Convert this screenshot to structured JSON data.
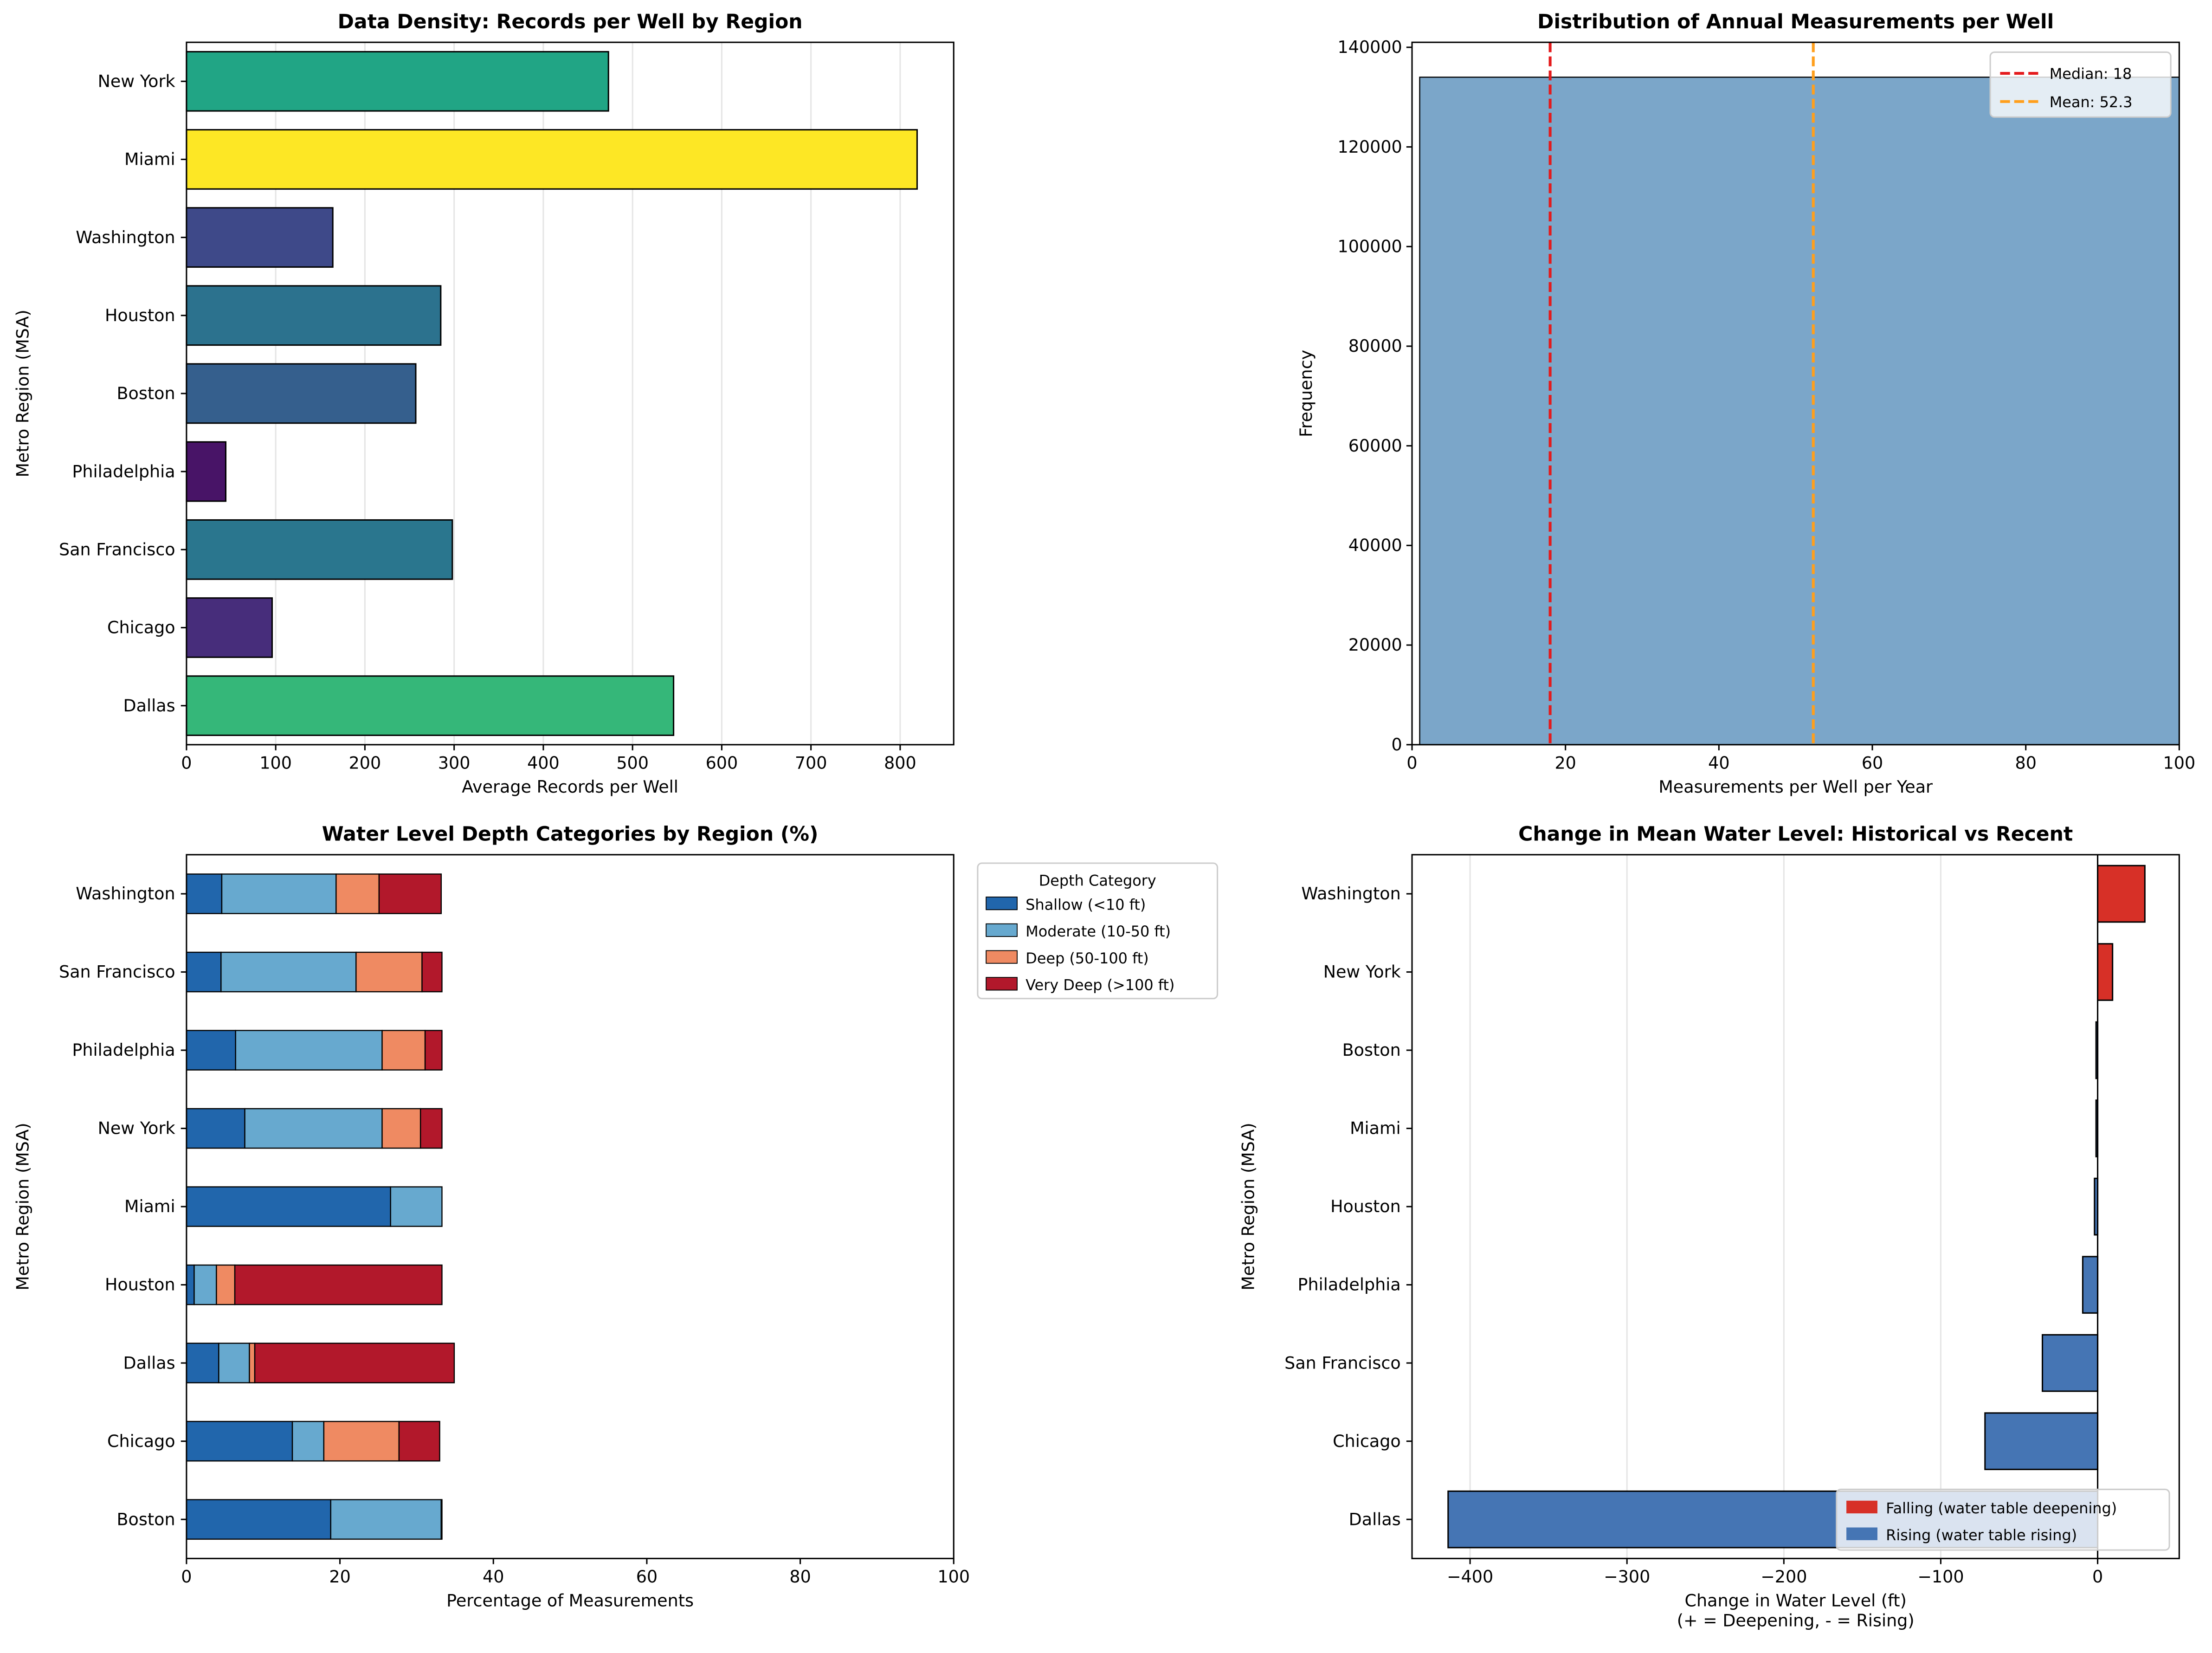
{
  "chart_data": [
    {
      "type": "bar",
      "orientation": "horizontal",
      "title": "Data Density: Records per Well by Region",
      "xlabel": "Average Records per Well",
      "ylabel": "Metro Region (MSA)",
      "xlim": [
        0,
        860
      ],
      "xticks": [
        0,
        100,
        200,
        300,
        400,
        500,
        600,
        700,
        800
      ],
      "grid": "x",
      "categories": [
        "New York",
        "Miami",
        "Washington",
        "Houston",
        "Boston",
        "Philadelphia",
        "San Francisco",
        "Chicago",
        "Dallas"
      ],
      "values": [
        473,
        819,
        164,
        285,
        257,
        44,
        298,
        96,
        546
      ],
      "colors": [
        "#21a585",
        "#fde725",
        "#3e4989",
        "#2c728e",
        "#355f8d",
        "#481467",
        "#2a768e",
        "#472d7b",
        "#35b779"
      ]
    },
    {
      "type": "bar",
      "subtype": "histogram",
      "title": "Distribution of Annual Measurements per Well",
      "xlabel": "Measurements per Well per Year",
      "ylabel": "Frequency",
      "xlim": [
        0,
        100
      ],
      "ylim": [
        0,
        141000
      ],
      "xticks": [
        0,
        20,
        40,
        60,
        80,
        100
      ],
      "yticks": [
        0,
        20000,
        40000,
        60000,
        80000,
        100000,
        120000,
        140000
      ],
      "bins": [
        {
          "x0": 1,
          "x1": 100,
          "count": 134000
        }
      ],
      "bar_color": "#7ba6c9",
      "lines": [
        {
          "name": "Median: 18",
          "x": 18,
          "color": "#e41a1c"
        },
        {
          "name": "Mean: 52.3",
          "x": 52.3,
          "color": "#ff9f1c"
        }
      ],
      "legend": "top-right"
    },
    {
      "type": "bar",
      "orientation": "horizontal",
      "stacked": true,
      "title": "Water Level Depth Categories by Region (%)",
      "xlabel": "Percentage of Measurements",
      "ylabel": "Metro Region (MSA)",
      "xlim": [
        0,
        100
      ],
      "xticks": [
        0,
        20,
        40,
        60,
        80,
        100
      ],
      "categories": [
        "Washington",
        "San Francisco",
        "Philadelphia",
        "New York",
        "Miami",
        "Houston",
        "Dallas",
        "Chicago",
        "Boston"
      ],
      "legend_title": "Depth Category",
      "legend": "outside-right",
      "series": [
        {
          "name": "Shallow (<10 ft)",
          "color": "#2166ac",
          "values": [
            4.6,
            4.5,
            6.4,
            7.6,
            26.6,
            1.0,
            4.2,
            13.8,
            18.8
          ]
        },
        {
          "name": "Moderate (10-50 ft)",
          "color": "#67a9cf",
          "values": [
            14.9,
            17.6,
            19.1,
            17.9,
            6.7,
            2.9,
            4.0,
            4.1,
            14.4
          ]
        },
        {
          "name": "Deep (50-100 ft)",
          "color": "#ef8a62",
          "values": [
            5.6,
            8.6,
            5.6,
            5.0,
            0,
            2.4,
            0.7,
            9.8,
            0.1
          ]
        },
        {
          "name": "Very Deep (>100 ft)",
          "color": "#b2182b",
          "values": [
            8.1,
            2.6,
            2.2,
            2.8,
            0,
            27.0,
            26.0,
            5.3,
            0
          ]
        }
      ]
    },
    {
      "type": "bar",
      "orientation": "horizontal",
      "title": "Change in Mean Water Level: Historical vs Recent",
      "xlabel": "Change in Water Level (ft)",
      "xlabel2": "(+ = Deepening, - = Rising)",
      "ylabel": "Metro Region (MSA)",
      "xlim": [
        -437,
        52
      ],
      "xticks": [
        -400,
        -300,
        -200,
        -100,
        0
      ],
      "xtick_labels": [
        "−400",
        "−300",
        "−200",
        "−100",
        "0"
      ],
      "grid": "x",
      "categories": [
        "Washington",
        "New York",
        "Boston",
        "Miami",
        "Houston",
        "Philadelphia",
        "San Francisco",
        "Chicago",
        "Dallas"
      ],
      "values": [
        30.1,
        9.5,
        -1,
        -1,
        -2,
        -9.5,
        -35.2,
        -71.8,
        -414
      ],
      "positive_color": "#d73027",
      "negative_color": "#4575b4",
      "legend": "lower-right",
      "legend_entries": [
        "Falling (water table deepening)",
        "Rising (water table rising)"
      ]
    }
  ]
}
